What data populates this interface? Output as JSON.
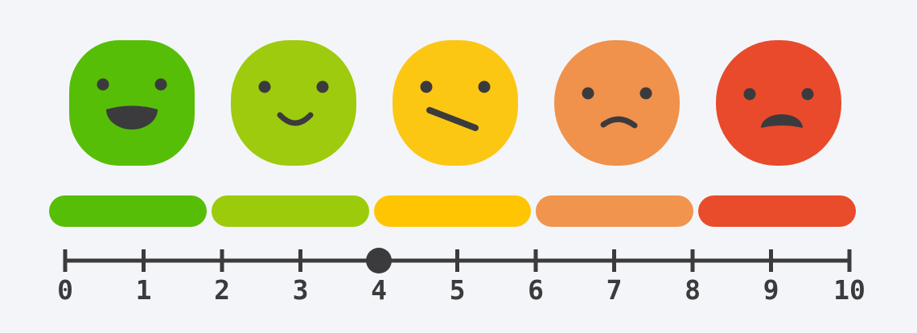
{
  "widget": {
    "name": "satisfaction-rating-scale",
    "background_color": "#f4f5f9",
    "ink_color": "#3b3b3d"
  },
  "faces": [
    {
      "id": "very-happy",
      "mood": "big open smile",
      "color": "#57be07"
    },
    {
      "id": "happy",
      "mood": "slight smile",
      "color": "#9ecb0d"
    },
    {
      "id": "neutral",
      "mood": "flat slanted mouth",
      "color": "#fbc713"
    },
    {
      "id": "unhappy",
      "mood": "slight frown",
      "color": "#f0914c"
    },
    {
      "id": "very-unhappy",
      "mood": "big open frown",
      "color": "#e84a2b"
    }
  ],
  "bar": {
    "segments": [
      {
        "id": "segment-very-happy",
        "color": "#57be07"
      },
      {
        "id": "segment-happy",
        "color": "#9ccb0b"
      },
      {
        "id": "segment-neutral",
        "color": "#ffc502"
      },
      {
        "id": "segment-unhappy",
        "color": "#f0944e"
      },
      {
        "id": "segment-very-unhappy",
        "color": "#e84c2b"
      }
    ]
  },
  "scale": {
    "min": 0,
    "max": 10,
    "step": 1,
    "selected_value": 4,
    "tick_labels": [
      "0",
      "1",
      "2",
      "3",
      "4",
      "5",
      "6",
      "7",
      "8",
      "9",
      "10"
    ]
  }
}
